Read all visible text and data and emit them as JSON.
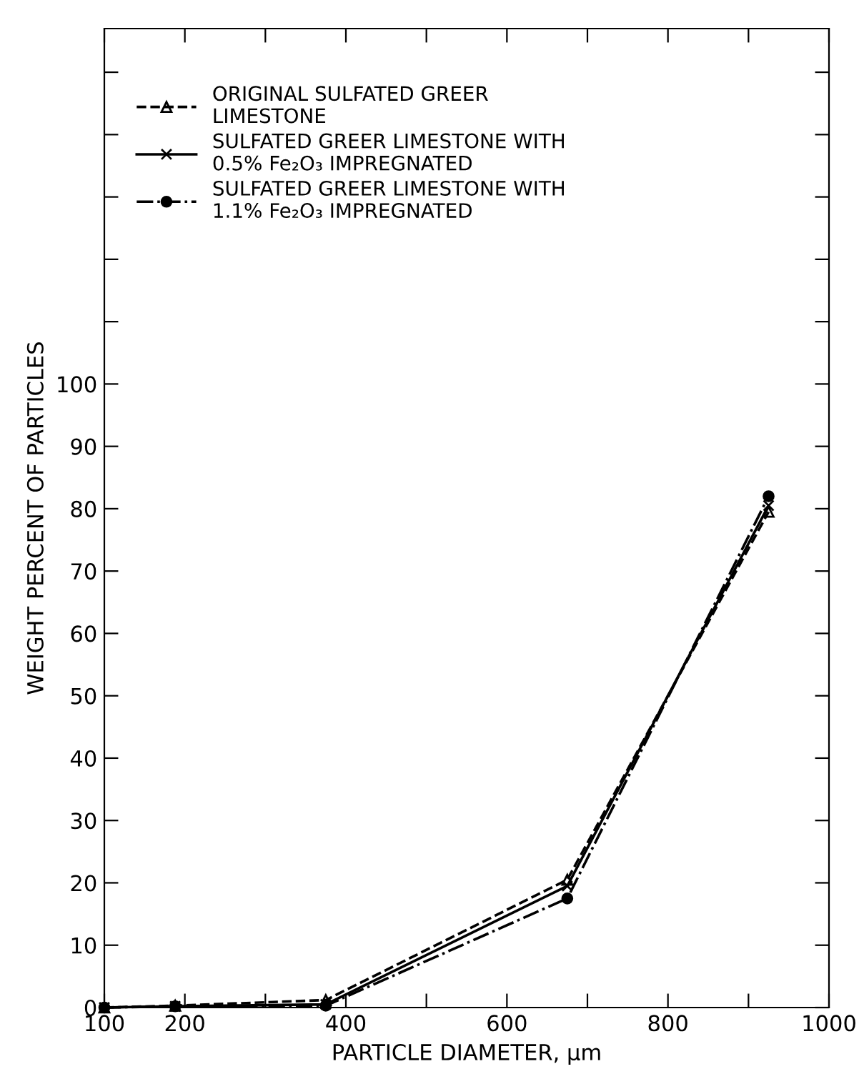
{
  "chart_data": {
    "type": "line",
    "xlabel": "PARTICLE DIAMETER, µm",
    "ylabel": "WEIGHT PERCENT OF PARTICLES",
    "x": [
      100,
      188,
      375,
      675,
      925
    ],
    "series": [
      {
        "name": "ORIGINAL SULFATED GREER\nLIMESTONE",
        "color": "#000000",
        "marker": "triangle",
        "line_style": "dashed",
        "values": [
          0,
          0.3,
          1.2,
          20.5,
          79.5
        ]
      },
      {
        "name": "SULFATED GREER LIMESTONE WITH\n0.5% Fe₂O₃ IMPREGNATED",
        "color": "#000000",
        "marker": "cross",
        "line_style": "solid",
        "values": [
          0,
          0.2,
          0.5,
          19.5,
          80.5
        ]
      },
      {
        "name": "SULFATED GREER LIMESTONE WITH\n1.1% Fe₂O₃ IMPREGNATED",
        "color": "#000000",
        "marker": "circle",
        "line_style": "dashdot",
        "values": [
          0,
          0.2,
          0.3,
          17.5,
          82
        ]
      }
    ],
    "xlim": [
      100,
      1000
    ],
    "ylim": [
      0,
      157
    ],
    "xticks": [
      100,
      200,
      {
        "value": 300,
        "label": null
      },
      400,
      {
        "value": 500,
        "label": null
      },
      600,
      {
        "value": 700,
        "label": null
      },
      800,
      {
        "value": 900,
        "label": null
      },
      1000
    ],
    "yticks": [
      0,
      10,
      20,
      30,
      40,
      50,
      60,
      70,
      80,
      90,
      100,
      {
        "value": 110,
        "label": null
      },
      {
        "value": 120,
        "label": null
      },
      {
        "value": 130,
        "label": null
      },
      {
        "value": 140,
        "label": null
      },
      {
        "value": 150,
        "label": null
      }
    ],
    "grid": false,
    "legend": "top left"
  }
}
